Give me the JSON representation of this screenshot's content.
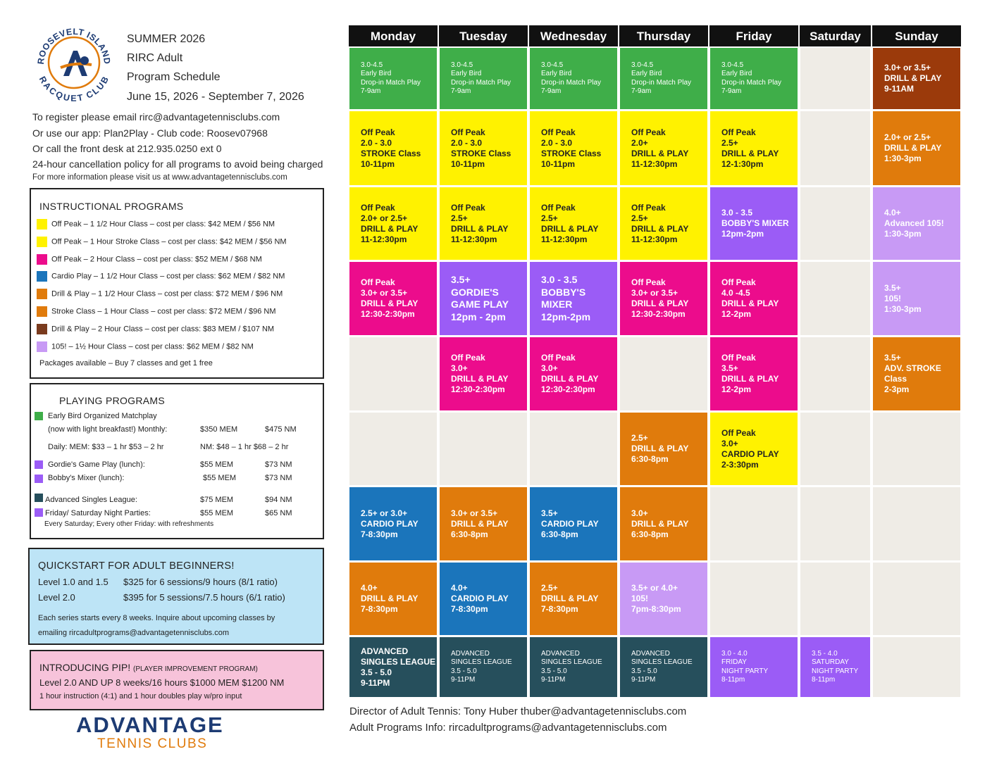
{
  "header": {
    "logo_top_text": "ROOSEVELT ISLAND",
    "logo_bottom_text": "RACQUET CLUB",
    "season": "SUMMER 2026",
    "club": "RIRC Adult",
    "doc": "Program Schedule",
    "dates": "June 15, 2026 - September 7, 2026"
  },
  "register": {
    "line1": "To register please email rirc@advantagetennisclubs.com",
    "line2": "Or use our app:  Plan2Play - Club code: Roosev07968",
    "line3": "Or call the front desk at 212.935.0250 ext 0",
    "line4": "24-hour cancellation policy for all programs to avoid being charged",
    "line5": "For more information please visit us at www.advantagetennisclubs.com"
  },
  "instructional": {
    "title": "INSTRUCTIONAL PROGRAMS",
    "items": [
      {
        "color": "#fff200",
        "text": "Off Peak – 1 1/2 Hour Class – cost per class: $42 MEM / $56 NM"
      },
      {
        "color": "#fff200",
        "text": "Off Peak – 1 Hour Stroke Class – cost per class: $42 MEM / $56 NM"
      },
      {
        "color": "#ec0c8c",
        "text": "Off Peak – 2 Hour Class – cost per class: $52 MEM / $68 NM"
      },
      {
        "color": "#1b75bb",
        "text": "Cardio Play – 1 1/2 Hour Class – cost per class: $62 MEM / $82 NM"
      },
      {
        "color": "#e07b0c",
        "text": "Drill & Play – 1 1/2 Hour Class – cost per class: $72 MEM / $96 NM"
      },
      {
        "color": "#e07b0c",
        "text": "Stroke Class – 1 Hour Class – cost per class: $72 MEM / $96 NM"
      },
      {
        "color": "#7a3b1e",
        "text": "Drill & Play – 2 Hour Class – cost per class: $83 MEM / $107 NM"
      },
      {
        "color": "#c89af5",
        "text": "105! – 1½ Hour Class – cost per class: $62 MEM / $82 NM"
      }
    ],
    "packages": "Packages available – Buy 7 classes and get 1 free"
  },
  "playing": {
    "title": "PLAYING PROGRAMS",
    "early_bird": "Early Bird Organized Matchplay",
    "breakfast": "(now with light breakfast!)   Monthly:",
    "monthly_mem": "$350 MEM",
    "monthly_nm": "$475 NM",
    "daily_mem": "Daily: MEM: $33 – 1 hr  $53 – 2 hr",
    "daily_nm": "NM: $48 – 1 hr  $68 – 2 hr",
    "gordie": "Gordie's Game Play (lunch):",
    "gordie_mem": "$55 MEM",
    "gordie_nm": "$73 NM",
    "bobby": "Bobby's  Mixer  (lunch):",
    "bobby_mem": "$55 MEM",
    "bobby_nm": "$73 NM",
    "league": "Advanced Singles League:",
    "league_mem": "$75 MEM",
    "league_nm": "$94 NM",
    "parties": "Friday/ Saturday Night Parties:",
    "parties_mem": "$55 MEM",
    "parties_nm": "$65 NM",
    "parties_note": "Every Saturday; Every other Friday: with refreshments",
    "colors": {
      "green": "#3fae49",
      "purple": "#9b5cf6",
      "teal": "#264f5c"
    }
  },
  "quickstart": {
    "title": "QUICKSTART FOR ADULT BEGINNERS!",
    "l1_level": "Level 1.0  and 1.5",
    "l1_price": "$325 for 6 sessions/9 hours (8/1 ratio)",
    "l2_level": "Level 2.0",
    "l2_price": "$395 for 5 sessions/7.5 hours (6/1 ratio)",
    "note1": "Each series starts every 8 weeks.  Inquire about upcoming classes  by",
    "note2": "emailing rircadultprograms@advantagetennisclubs.com"
  },
  "pip": {
    "title": "INTRODUCING PIP!",
    "subtitle": "(PLAYER IMPROVEMENT PROGRAM)",
    "line": "Level 2.0 AND UP  8 weeks/16 hours  $1000 MEM  $1200 NM",
    "note": "1 hour instruction (4:1) and  1 hour doubles play w/pro input"
  },
  "brand": {
    "name": "ADVANTAGE",
    "sub": "TENNIS CLUBS"
  },
  "days": [
    "Monday",
    "Tuesday",
    "Wednesday",
    "Thursday",
    "Friday",
    "Saturday",
    "Sunday"
  ],
  "schedule": [
    {
      "day": 0,
      "row": 0,
      "color": "#3fae49",
      "size": "sm",
      "lines": [
        "3.0-4.5",
        "Early Bird",
        "Drop-in Match Play",
        "7-9am"
      ]
    },
    {
      "day": 1,
      "row": 0,
      "color": "#3fae49",
      "size": "sm",
      "lines": [
        "3.0-4.5",
        "Early Bird",
        "Drop-in Match Play",
        "7-9am"
      ]
    },
    {
      "day": 2,
      "row": 0,
      "color": "#3fae49",
      "size": "sm",
      "lines": [
        "3.0-4.5",
        "Early Bird",
        "Drop-in Match Play",
        "7-9am"
      ]
    },
    {
      "day": 3,
      "row": 0,
      "color": "#3fae49",
      "size": "sm",
      "lines": [
        "3.0-4.5",
        "Early Bird",
        "Drop-in Match Play",
        "7-9am"
      ]
    },
    {
      "day": 4,
      "row": 0,
      "color": "#3fae49",
      "size": "sm",
      "lines": [
        "3.0-4.5",
        "Early Bird",
        "Drop-in Match Play",
        "7-9am"
      ]
    },
    {
      "day": 6,
      "row": 0,
      "color": "#9b3a0b",
      "size": "md",
      "lines": [
        "3.0+ or 3.5+",
        "DRILL & PLAY",
        "9-11AM"
      ]
    },
    {
      "day": 0,
      "row": 1,
      "color": "#fff200",
      "dark": true,
      "size": "md",
      "lines": [
        "Off Peak",
        "2.0 - 3.0",
        "STROKE Class",
        "10-11pm"
      ]
    },
    {
      "day": 1,
      "row": 1,
      "color": "#fff200",
      "dark": true,
      "size": "md",
      "lines": [
        "Off Peak",
        "2.0 - 3.0",
        "STROKE Class",
        "10-11pm"
      ]
    },
    {
      "day": 2,
      "row": 1,
      "color": "#fff200",
      "dark": true,
      "size": "md",
      "lines": [
        "Off Peak",
        "2.0 - 3.0",
        "STROKE Class",
        "10-11pm"
      ]
    },
    {
      "day": 3,
      "row": 1,
      "color": "#fff200",
      "dark": true,
      "size": "md",
      "lines": [
        "Off Peak",
        "2.0+",
        "DRILL & PLAY",
        "11-12:30pm"
      ]
    },
    {
      "day": 4,
      "row": 1,
      "color": "#fff200",
      "dark": true,
      "size": "md",
      "lines": [
        "Off Peak",
        "2.5+",
        "DRILL & PLAY",
        "12-1:30pm"
      ]
    },
    {
      "day": 6,
      "row": 1,
      "color": "#e07b0c",
      "size": "md",
      "lines": [
        "2.0+ or 2.5+",
        "DRILL & PLAY",
        "1:30-3pm"
      ]
    },
    {
      "day": 0,
      "row": 2,
      "color": "#fff200",
      "dark": true,
      "size": "md",
      "lines": [
        "Off Peak",
        "2.0+ or 2.5+",
        "DRILL & PLAY",
        "11-12:30pm"
      ]
    },
    {
      "day": 1,
      "row": 2,
      "color": "#fff200",
      "dark": true,
      "size": "md",
      "lines": [
        "Off Peak",
        "2.5+",
        "DRILL & PLAY",
        "11-12:30pm"
      ]
    },
    {
      "day": 2,
      "row": 2,
      "color": "#fff200",
      "dark": true,
      "size": "md",
      "lines": [
        "Off Peak",
        "2.5+",
        "DRILL & PLAY",
        "11-12:30pm"
      ]
    },
    {
      "day": 3,
      "row": 2,
      "color": "#fff200",
      "dark": true,
      "size": "md",
      "lines": [
        "Off Peak",
        "2.5+",
        "DRILL & PLAY",
        "11-12:30pm"
      ]
    },
    {
      "day": 4,
      "row": 2,
      "color": "#9b5cf6",
      "size": "md",
      "lines": [
        "3.0 - 3.5",
        "BOBBY'S MIXER",
        "12pm-2pm"
      ]
    },
    {
      "day": 6,
      "row": 2,
      "color": "#c89af5",
      "size": "md",
      "lines": [
        "4.0+",
        "Advanced 105!",
        "1:30-3pm"
      ]
    },
    {
      "day": 0,
      "row": 3,
      "color": "#ec0c8c",
      "size": "md",
      "lines": [
        "Off Peak",
        "3.0+ or 3.5+",
        "DRILL & PLAY",
        "12:30-2:30pm"
      ]
    },
    {
      "day": 1,
      "row": 3,
      "color": "#9b5cf6",
      "size": "lg",
      "lines": [
        "3.5+",
        "GORDIE'S",
        "GAME PLAY",
        "12pm - 2pm"
      ]
    },
    {
      "day": 2,
      "row": 3,
      "color": "#9b5cf6",
      "size": "lg",
      "lines": [
        "3.0 - 3.5",
        "BOBBY'S MIXER",
        "12pm-2pm"
      ]
    },
    {
      "day": 3,
      "row": 3,
      "color": "#ec0c8c",
      "size": "md",
      "lines": [
        "Off Peak",
        "3.0+ or 3.5+",
        "DRILL & PLAY",
        "12:30-2:30pm"
      ]
    },
    {
      "day": 4,
      "row": 3,
      "color": "#ec0c8c",
      "size": "md",
      "lines": [
        "Off Peak",
        "4.0 -4.5",
        "DRILL & PLAY",
        "12-2pm"
      ]
    },
    {
      "day": 6,
      "row": 3,
      "color": "#c89af5",
      "size": "md",
      "lines": [
        "3.5+",
        "105!",
        "1:30-3pm"
      ]
    },
    {
      "day": 1,
      "row": 4,
      "color": "#ec0c8c",
      "size": "md",
      "lines": [
        "Off Peak",
        "3.0+",
        "DRILL & PLAY",
        "12:30-2:30pm"
      ]
    },
    {
      "day": 2,
      "row": 4,
      "color": "#ec0c8c",
      "size": "md",
      "lines": [
        "Off Peak",
        "3.0+",
        "DRILL & PLAY",
        "12:30-2:30pm"
      ]
    },
    {
      "day": 4,
      "row": 4,
      "color": "#ec0c8c",
      "size": "md",
      "lines": [
        "Off Peak",
        "3.5+",
        "DRILL & PLAY",
        "12-2pm"
      ]
    },
    {
      "day": 6,
      "row": 4,
      "color": "#e07b0c",
      "size": "md",
      "lines": [
        "3.5+",
        "ADV. STROKE",
        "Class",
        "2-3pm"
      ]
    },
    {
      "day": 3,
      "row": 5,
      "color": "#e07b0c",
      "size": "md",
      "lines": [
        "2.5+",
        "DRILL & PLAY",
        "6:30-8pm"
      ]
    },
    {
      "day": 4,
      "row": 5,
      "color": "#fff200",
      "dark": true,
      "size": "md",
      "lines": [
        "Off Peak",
        "3.0+",
        "CARDIO PLAY",
        "2-3:30pm"
      ]
    },
    {
      "day": 0,
      "row": 6,
      "color": "#1b75bb",
      "size": "md",
      "lines": [
        "2.5+ or 3.0+",
        "CARDIO PLAY",
        "7-8:30pm"
      ]
    },
    {
      "day": 1,
      "row": 6,
      "color": "#e07b0c",
      "size": "md",
      "lines": [
        "3.0+ or 3.5+",
        "DRILL & PLAY",
        "6:30-8pm"
      ]
    },
    {
      "day": 2,
      "row": 6,
      "color": "#1b75bb",
      "size": "md",
      "lines": [
        "3.5+",
        "CARDIO PLAY",
        "6:30-8pm"
      ]
    },
    {
      "day": 3,
      "row": 6,
      "color": "#e07b0c",
      "size": "md",
      "lines": [
        "3.0+",
        "DRILL & PLAY",
        "6:30-8pm"
      ]
    },
    {
      "day": 0,
      "row": 7,
      "color": "#e07b0c",
      "size": "md",
      "lines": [
        "4.0+",
        "DRILL & PLAY",
        "7-8:30pm"
      ]
    },
    {
      "day": 1,
      "row": 7,
      "color": "#1b75bb",
      "size": "md",
      "lines": [
        "4.0+",
        "CARDIO PLAY",
        "7-8:30pm"
      ]
    },
    {
      "day": 2,
      "row": 7,
      "color": "#e07b0c",
      "size": "md",
      "lines": [
        "2.5+",
        "DRILL & PLAY",
        "7-8:30pm"
      ]
    },
    {
      "day": 3,
      "row": 7,
      "color": "#c89af5",
      "size": "md",
      "lines": [
        "3.5+ or 4.0+",
        "105!",
        "7pm-8:30pm"
      ]
    },
    {
      "day": 0,
      "row": 8,
      "color": "#264f5c",
      "size": "md",
      "lines": [
        "ADVANCED",
        "SINGLES LEAGUE",
        "3.5 - 5.0",
        "9-11PM"
      ]
    },
    {
      "day": 1,
      "row": 8,
      "color": "#264f5c",
      "size": "sm",
      "lines": [
        "ADVANCED",
        "SINGLES LEAGUE",
        "3.5 - 5.0",
        "9-11PM"
      ]
    },
    {
      "day": 2,
      "row": 8,
      "color": "#264f5c",
      "size": "sm",
      "lines": [
        "ADVANCED",
        "SINGLES LEAGUE",
        "3.5 - 5.0",
        "9-11PM"
      ]
    },
    {
      "day": 3,
      "row": 8,
      "color": "#264f5c",
      "size": "sm",
      "lines": [
        "ADVANCED",
        "SINGLES LEAGUE",
        "3.5 - 5.0",
        "9-11PM"
      ]
    },
    {
      "day": 4,
      "row": 8,
      "color": "#9b5cf6",
      "size": "sm",
      "lines": [
        "3.0 - 4.0",
        "FRIDAY",
        "NIGHT PARTY",
        "8-11pm"
      ]
    },
    {
      "day": 5,
      "row": 8,
      "color": "#9b5cf6",
      "size": "sm",
      "lines": [
        "3.5 - 4.0",
        "SATURDAY",
        "NIGHT PARTY",
        "8-11pm"
      ]
    }
  ],
  "footer": {
    "director": "Director of Adult Tennis:  Tony Huber     thuber@advantagetennisclubs.com",
    "info": "Adult Programs Info:  rircadultprograms@advantagetennisclubs.com"
  }
}
